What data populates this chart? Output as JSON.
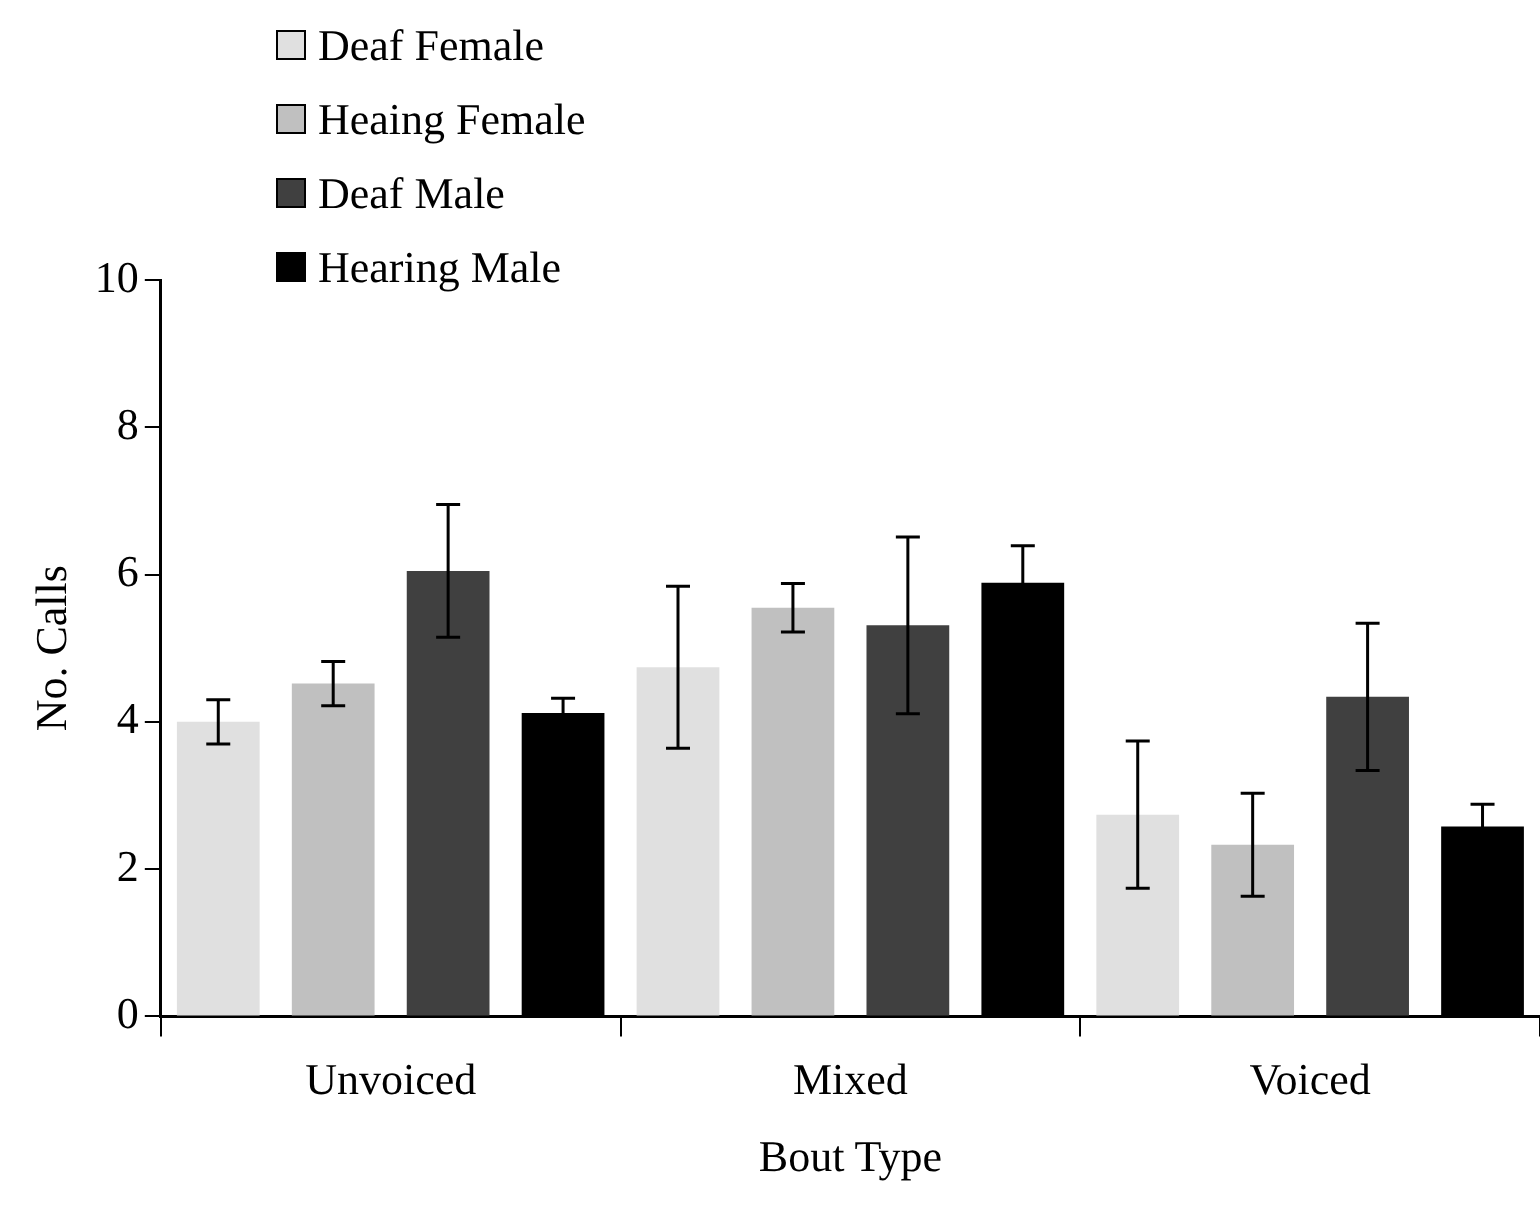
{
  "chart_data": {
    "type": "bar",
    "xlabel": "Bout Type",
    "ylabel": "No. Calls",
    "categories": [
      "Unvoiced",
      "Mixed",
      "Voiced"
    ],
    "series": [
      {
        "name": "Deaf Female",
        "color": "#e0e0e0",
        "values": [
          4.0,
          4.74,
          2.74
        ],
        "errors": [
          0.3,
          1.1,
          1.0
        ]
      },
      {
        "name": "Heaing Female",
        "color": "#c0c0c0",
        "values": [
          4.52,
          5.55,
          2.33
        ],
        "errors": [
          0.3,
          0.33,
          0.7
        ]
      },
      {
        "name": "Deaf Male",
        "color": "#404040",
        "values": [
          6.05,
          5.31,
          4.34
        ],
        "errors": [
          0.9,
          1.2,
          1.0
        ]
      },
      {
        "name": "Hearing Male",
        "color": "#000000",
        "values": [
          4.12,
          5.89,
          2.58
        ],
        "errors": [
          0.2,
          0.5,
          0.3
        ]
      }
    ],
    "ylim": [
      0,
      10
    ],
    "yticks": [
      0,
      2,
      4,
      6,
      8,
      10
    ],
    "grid": false,
    "legend": "top left"
  }
}
